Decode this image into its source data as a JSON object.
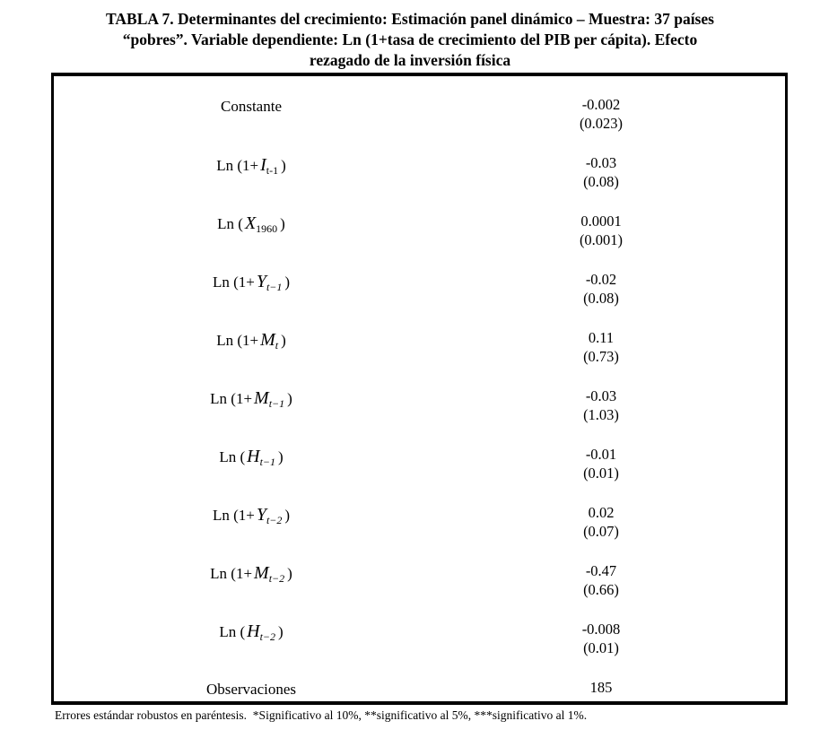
{
  "page": {
    "title_lines": [
      "TABLA 7. Determinantes del crecimiento: Estimación panel dinámico – Muestra: 37 países",
      "“pobres”. Variable dependiente: Ln (1+tasa de crecimiento del PIB per cápita). Efecto",
      "rezagado de la inversión física"
    ],
    "footnote": "Errores estándar robustos en paréntesis.  *Significativo al 10%, **significativo al 5%, ***significativo al 1%."
  },
  "colors": {
    "text": "#000000",
    "border": "#000000",
    "background": "#ffffff"
  },
  "table": {
    "rows": [
      {
        "label_pre": "Constante",
        "coefficient": "-0.002",
        "std_error": "(0.023)"
      },
      {
        "label_pre": "Ln (1+",
        "label_var": "I",
        "label_sub": "t-1",
        "label_post": ")",
        "coefficient": "-0.03",
        "std_error": "(0.08)"
      },
      {
        "label_pre": "Ln (",
        "label_var": "X",
        "label_sub": "1960",
        "label_post": ")",
        "coefficient": "0.0001",
        "std_error": "(0.001)"
      },
      {
        "label_pre": "Ln (1+",
        "label_var": "Y",
        "label_sub": "t−1",
        "label_post": ")",
        "coefficient": "-0.02",
        "std_error": "(0.08)"
      },
      {
        "label_pre": "Ln (1+",
        "label_var": "M",
        "label_sub": "t",
        "label_post": ")",
        "coefficient": "0.11",
        "std_error": "(0.73)"
      },
      {
        "label_pre": "Ln (1+",
        "label_var": "M",
        "label_sub": "t−1",
        "label_post": ")",
        "coefficient": "-0.03",
        "std_error": "(1.03)"
      },
      {
        "label_pre": "Ln (",
        "label_var": "H",
        "label_sub": "t−1",
        "label_post": ")",
        "coefficient": "-0.01",
        "std_error": "(0.01)"
      },
      {
        "label_pre": "Ln (1+",
        "label_var": "Y",
        "label_sub": "t−2",
        "label_post": ")",
        "coefficient": "0.02",
        "std_error": "(0.07)"
      },
      {
        "label_pre": "Ln (1+",
        "label_var": "M",
        "label_sub": "t−2",
        "label_post": ")",
        "coefficient": "-0.47",
        "std_error": "(0.66)"
      },
      {
        "label_pre": "Ln (",
        "label_var": "H",
        "label_sub": "t−2",
        "label_post": ")",
        "coefficient": "-0.008",
        "std_error": "(0.01)"
      },
      {
        "label_pre": "Observaciones",
        "coefficient": "185",
        "std_error": ""
      }
    ]
  }
}
